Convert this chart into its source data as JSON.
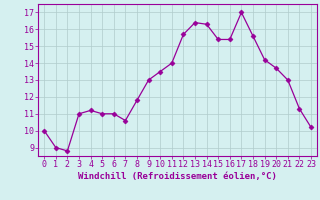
{
  "x": [
    0,
    1,
    2,
    3,
    4,
    5,
    6,
    7,
    8,
    9,
    10,
    11,
    12,
    13,
    14,
    15,
    16,
    17,
    18,
    19,
    20,
    21,
    22,
    23
  ],
  "y": [
    10.0,
    9.0,
    8.8,
    11.0,
    11.2,
    11.0,
    11.0,
    10.6,
    11.8,
    13.0,
    13.5,
    14.0,
    15.7,
    16.4,
    16.3,
    15.4,
    15.4,
    17.0,
    15.6,
    14.2,
    13.7,
    13.0,
    11.3,
    10.2
  ],
  "line_color": "#990099",
  "marker": "D",
  "marker_size": 2.5,
  "bg_color": "#d5f0f0",
  "plot_bg_color": "#d5f0f0",
  "grid_color": "#b0cccc",
  "xlabel": "Windchill (Refroidissement éolien,°C)",
  "xlabel_fontsize": 6.5,
  "tick_fontsize": 6.0,
  "ytick_vals": [
    9,
    10,
    11,
    12,
    13,
    14,
    15,
    16,
    17
  ],
  "ytick_labels": [
    "9",
    "10",
    "11",
    "12",
    "13",
    "14",
    "15",
    "16",
    "17"
  ],
  "ylim": [
    8.5,
    17.5
  ],
  "xlim": [
    -0.5,
    23.5
  ],
  "xtick_labels": [
    "0",
    "1",
    "2",
    "3",
    "4",
    "5",
    "6",
    "7",
    "8",
    "9",
    "10",
    "11",
    "12",
    "13",
    "14",
    "15",
    "16",
    "17",
    "18",
    "19",
    "20",
    "21",
    "22",
    "23"
  ]
}
